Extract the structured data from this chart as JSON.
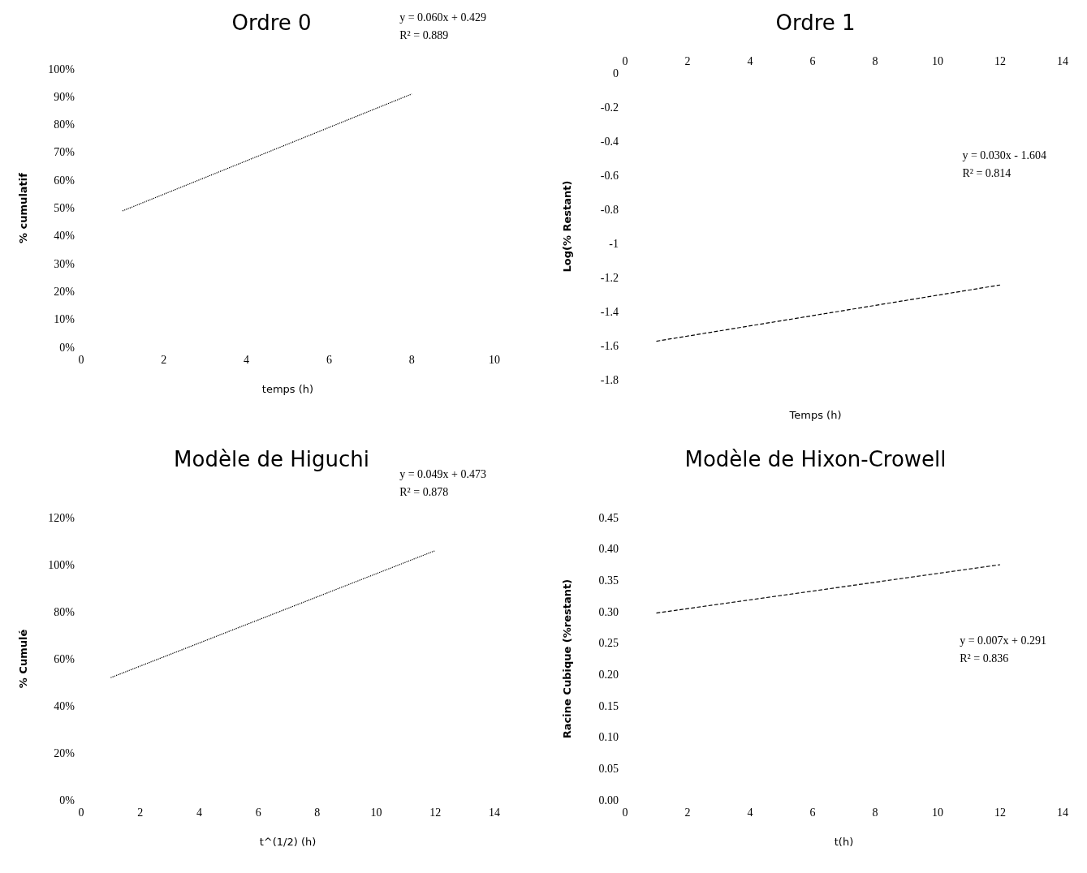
{
  "chart_data": [
    {
      "type": "line",
      "title": "Ordre 0",
      "xlabel": "temps (h)",
      "ylabel": "% cumulatif",
      "x": [
        1,
        8
      ],
      "values": [
        49,
        91
      ],
      "color": "#000000",
      "line_style": "dotted",
      "marker": "none",
      "xlim": [
        0,
        10
      ],
      "xticks": [
        0,
        2,
        4,
        6,
        8,
        10
      ],
      "ylim": [
        0,
        100
      ],
      "yticks": [
        {
          "value": 0,
          "label": "0%"
        },
        {
          "value": 10,
          "label": "10%"
        },
        {
          "value": 20,
          "label": "20%"
        },
        {
          "value": 30,
          "label": "30%"
        },
        {
          "value": 40,
          "label": "40%"
        },
        {
          "value": 50,
          "label": "50%"
        },
        {
          "value": 60,
          "label": "60%"
        },
        {
          "value": 70,
          "label": "70%"
        },
        {
          "value": 80,
          "label": "80%"
        },
        {
          "value": 90,
          "label": "90%"
        },
        {
          "value": 100,
          "label": "100%"
        }
      ],
      "annotations": [
        "y = 0.060x + 0.429",
        "R² = 0.889"
      ]
    },
    {
      "type": "line",
      "title": "Ordre 1",
      "xlabel": "Temps (h)",
      "ylabel": "Log(% Restant)",
      "x": [
        1,
        12
      ],
      "values": [
        -1.574,
        -1.244
      ],
      "color": "#000000",
      "line_style": "dashed",
      "marker": "none",
      "xlim": [
        0,
        14
      ],
      "xticks": [
        0,
        2,
        4,
        6,
        8,
        10,
        12,
        14
      ],
      "ylim": [
        -1.8,
        0
      ],
      "yticks": [
        0,
        -0.2,
        -0.4,
        -0.6,
        -0.8,
        -1,
        -1.2,
        -1.4,
        -1.6,
        -1.8
      ],
      "annotations": [
        "y = 0.030x - 1.604",
        "R² = 0.814"
      ]
    },
    {
      "type": "line",
      "title": "Modèle de Higuchi",
      "xlabel": "t^(1/2) (h)",
      "ylabel": "% Cumulé",
      "x": [
        1,
        12
      ],
      "values": [
        52,
        106
      ],
      "color": "#000000",
      "line_style": "dotted",
      "marker": "none",
      "xlim": [
        0,
        14
      ],
      "xticks": [
        0,
        2,
        4,
        6,
        8,
        10,
        12,
        14
      ],
      "ylim": [
        0,
        120
      ],
      "yticks": [
        {
          "value": 0,
          "label": "0%"
        },
        {
          "value": 20,
          "label": "20%"
        },
        {
          "value": 40,
          "label": "40%"
        },
        {
          "value": 60,
          "label": "60%"
        },
        {
          "value": 80,
          "label": "80%"
        },
        {
          "value": 100,
          "label": "100%"
        },
        {
          "value": 120,
          "label": "120%"
        }
      ],
      "annotations": [
        "y = 0.049x + 0.473",
        "R² = 0.878"
      ]
    },
    {
      "type": "line",
      "title": "Modèle de Hixon-Crowell",
      "xlabel": "t(h)",
      "ylabel": "Racine Cubique (%restant)",
      "x": [
        1,
        12
      ],
      "values": [
        0.298,
        0.375
      ],
      "color": "#000000",
      "line_style": "dashed",
      "marker": "none",
      "xlim": [
        0,
        14
      ],
      "xticks": [
        0,
        2,
        4,
        6,
        8,
        10,
        12,
        14
      ],
      "ylim": [
        0,
        0.45
      ],
      "yticks": [
        {
          "value": 0,
          "label": "0.00"
        },
        {
          "value": 0.05,
          "label": "0.05"
        },
        {
          "value": 0.1,
          "label": "0.10"
        },
        {
          "value": 0.15,
          "label": "0.15"
        },
        {
          "value": 0.2,
          "label": "0.20"
        },
        {
          "value": 0.25,
          "label": "0.25"
        },
        {
          "value": 0.3,
          "label": "0.30"
        },
        {
          "value": 0.35,
          "label": "0.35"
        },
        {
          "value": 0.4,
          "label": "0.40"
        },
        {
          "value": 0.45,
          "label": "0.45"
        }
      ],
      "annotations": [
        "y = 0.007x + 0.291",
        "R² = 0.836"
      ]
    }
  ]
}
